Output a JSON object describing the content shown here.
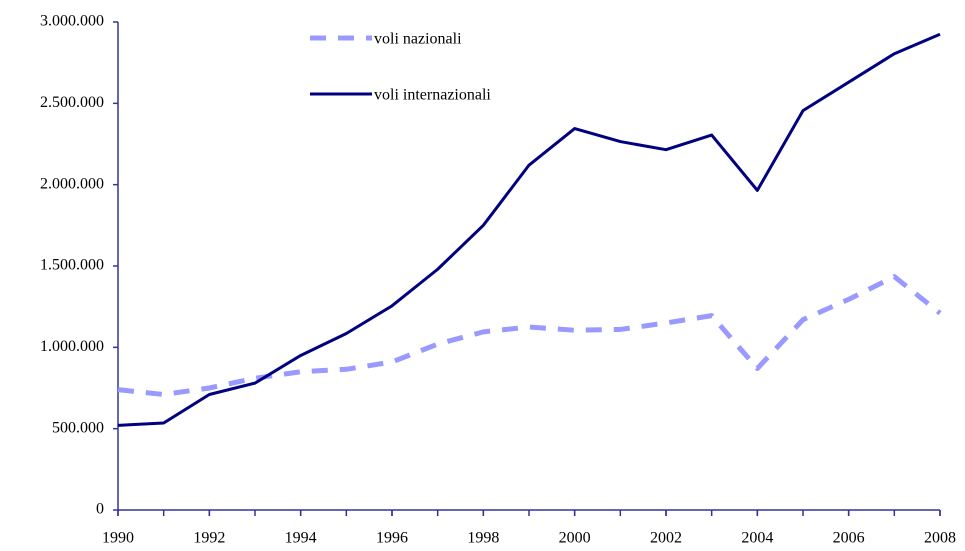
{
  "chart_data": {
    "type": "line",
    "x": [
      1990,
      1991,
      1992,
      1993,
      1994,
      1995,
      1996,
      1997,
      1998,
      1999,
      2000,
      2001,
      2002,
      2003,
      2004,
      2005,
      2006,
      2007,
      2008
    ],
    "series": [
      {
        "name": "voli nazionali",
        "color": "#9999ff",
        "dashed": true,
        "values": [
          740000,
          710000,
          750000,
          810000,
          850000,
          865000,
          910000,
          1020000,
          1095000,
          1125000,
          1105000,
          1110000,
          1150000,
          1195000,
          870000,
          1170000,
          1295000,
          1435000,
          1210000
        ]
      },
      {
        "name": "voli internazionali",
        "color": "#000080",
        "dashed": false,
        "values": [
          520000,
          535000,
          710000,
          780000,
          950000,
          1085000,
          1255000,
          1480000,
          1750000,
          2120000,
          2345000,
          2265000,
          2215000,
          2305000,
          1965000,
          2455000,
          2630000,
          2805000,
          2925000
        ]
      }
    ],
    "xlim": [
      1990,
      2008
    ],
    "xticks": [
      1990,
      1992,
      1994,
      1996,
      1998,
      2000,
      2002,
      2004,
      2006,
      2008
    ],
    "ylim": [
      0,
      3000000
    ],
    "yticks": [
      0,
      {
        "value": 500000,
        "label": "500.000"
      },
      {
        "value": 1000000,
        "label": "1.000.000"
      },
      {
        "value": 1500000,
        "label": "1.500.000"
      },
      {
        "value": 2000000,
        "label": "2.000.000"
      },
      {
        "value": 2500000,
        "label": "2.500.000"
      },
      {
        "value": 3000000,
        "label": "3.000.000"
      }
    ],
    "grid": false,
    "legend": "top"
  }
}
